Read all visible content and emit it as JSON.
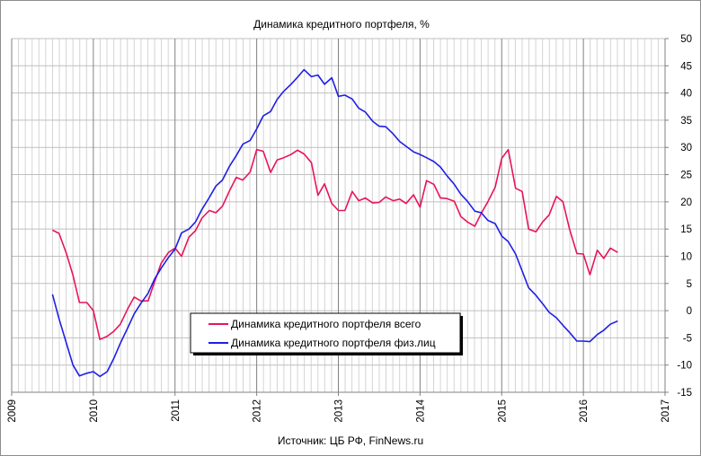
{
  "chart_data": {
    "type": "line",
    "title": "Динамика кредитного портфеля, %",
    "source": "Источник: ЦБ РФ, FinNews.ru",
    "xlim": [
      2009,
      2017
    ],
    "ylim": [
      -15,
      50
    ],
    "x_ticks": [
      "2009",
      "2010",
      "2011",
      "2012",
      "2013",
      "2014",
      "2015",
      "2016",
      "2017"
    ],
    "y_ticks": [
      "50",
      "45",
      "40",
      "35",
      "30",
      "25",
      "20",
      "15",
      "10",
      "5",
      "0",
      "-5",
      "-10",
      "-15"
    ],
    "y_tick_values": [
      50,
      45,
      40,
      35,
      30,
      25,
      20,
      15,
      10,
      5,
      0,
      -5,
      -10,
      -15
    ],
    "grid": true,
    "legend_position": "center-left",
    "series": [
      {
        "name": "Динамика кредитного портфеля всего",
        "color": "#e8145a",
        "points": [
          [
            2009.5,
            14.8
          ],
          [
            2009.58,
            14.2
          ],
          [
            2009.67,
            10.5
          ],
          [
            2009.75,
            6.5
          ],
          [
            2009.83,
            1.5
          ],
          [
            2009.92,
            1.5
          ],
          [
            2010.0,
            0.0
          ],
          [
            2010.08,
            -5.3
          ],
          [
            2010.17,
            -4.7
          ],
          [
            2010.25,
            -3.8
          ],
          [
            2010.33,
            -2.5
          ],
          [
            2010.42,
            0.3
          ],
          [
            2010.5,
            2.5
          ],
          [
            2010.58,
            1.8
          ],
          [
            2010.67,
            1.8
          ],
          [
            2010.75,
            5.3
          ],
          [
            2010.83,
            8.7
          ],
          [
            2010.92,
            10.7
          ],
          [
            2011.0,
            11.5
          ],
          [
            2011.08,
            10.0
          ],
          [
            2011.17,
            13.5
          ],
          [
            2011.25,
            14.7
          ],
          [
            2011.33,
            17.0
          ],
          [
            2011.42,
            18.4
          ],
          [
            2011.5,
            18.0
          ],
          [
            2011.58,
            19.2
          ],
          [
            2011.67,
            22.1
          ],
          [
            2011.75,
            24.5
          ],
          [
            2011.83,
            24.0
          ],
          [
            2011.92,
            25.5
          ],
          [
            2012.0,
            29.6
          ],
          [
            2012.08,
            29.3
          ],
          [
            2012.17,
            25.4
          ],
          [
            2012.25,
            27.7
          ],
          [
            2012.33,
            28.1
          ],
          [
            2012.42,
            28.7
          ],
          [
            2012.5,
            29.5
          ],
          [
            2012.58,
            28.8
          ],
          [
            2012.67,
            27.2
          ],
          [
            2012.75,
            21.2
          ],
          [
            2012.83,
            23.3
          ],
          [
            2012.92,
            19.7
          ],
          [
            2013.0,
            18.4
          ],
          [
            2013.08,
            18.4
          ],
          [
            2013.17,
            21.9
          ],
          [
            2013.25,
            20.2
          ],
          [
            2013.33,
            20.7
          ],
          [
            2013.42,
            19.8
          ],
          [
            2013.5,
            19.9
          ],
          [
            2013.58,
            20.9
          ],
          [
            2013.67,
            20.2
          ],
          [
            2013.75,
            20.5
          ],
          [
            2013.83,
            19.7
          ],
          [
            2013.92,
            21.3
          ],
          [
            2014.0,
            19.0
          ],
          [
            2014.08,
            23.9
          ],
          [
            2014.17,
            23.2
          ],
          [
            2014.25,
            20.7
          ],
          [
            2014.33,
            20.6
          ],
          [
            2014.42,
            20.1
          ],
          [
            2014.5,
            17.3
          ],
          [
            2014.58,
            16.3
          ],
          [
            2014.67,
            15.5
          ],
          [
            2014.75,
            17.9
          ],
          [
            2014.83,
            20.0
          ],
          [
            2014.92,
            22.7
          ],
          [
            2015.0,
            28.0
          ],
          [
            2015.08,
            29.6
          ],
          [
            2015.17,
            22.5
          ],
          [
            2015.25,
            21.9
          ],
          [
            2015.33,
            15.0
          ],
          [
            2015.42,
            14.5
          ],
          [
            2015.5,
            16.3
          ],
          [
            2015.58,
            17.6
          ],
          [
            2015.67,
            21.0
          ],
          [
            2015.75,
            20.0
          ],
          [
            2015.83,
            15.0
          ],
          [
            2015.92,
            10.5
          ],
          [
            2016.0,
            10.4
          ],
          [
            2016.08,
            6.6
          ],
          [
            2016.17,
            11.1
          ],
          [
            2016.25,
            9.6
          ],
          [
            2016.33,
            11.5
          ],
          [
            2016.42,
            10.7
          ]
        ]
      },
      {
        "name": "Динамика кредитного портфеля физ.лиц",
        "color": "#1e1ee6",
        "points": [
          [
            2009.5,
            3.0
          ],
          [
            2009.58,
            -1.5
          ],
          [
            2009.67,
            -6.0
          ],
          [
            2009.75,
            -10.0
          ],
          [
            2009.83,
            -12.0
          ],
          [
            2009.92,
            -11.5
          ],
          [
            2010.0,
            -11.2
          ],
          [
            2010.08,
            -12.1
          ],
          [
            2010.17,
            -11.2
          ],
          [
            2010.25,
            -8.8
          ],
          [
            2010.33,
            -6.0
          ],
          [
            2010.42,
            -3.2
          ],
          [
            2010.5,
            -0.6
          ],
          [
            2010.58,
            1.3
          ],
          [
            2010.67,
            3.2
          ],
          [
            2010.75,
            5.8
          ],
          [
            2010.83,
            7.8
          ],
          [
            2010.92,
            9.8
          ],
          [
            2011.0,
            11.3
          ],
          [
            2011.08,
            14.3
          ],
          [
            2011.17,
            15.0
          ],
          [
            2011.25,
            16.3
          ],
          [
            2011.33,
            18.6
          ],
          [
            2011.42,
            20.8
          ],
          [
            2011.5,
            22.9
          ],
          [
            2011.58,
            24.0
          ],
          [
            2011.67,
            26.6
          ],
          [
            2011.75,
            28.5
          ],
          [
            2011.83,
            30.6
          ],
          [
            2011.92,
            31.3
          ],
          [
            2012.0,
            33.4
          ],
          [
            2012.08,
            35.8
          ],
          [
            2012.17,
            36.6
          ],
          [
            2012.25,
            38.8
          ],
          [
            2012.33,
            40.3
          ],
          [
            2012.42,
            41.6
          ],
          [
            2012.5,
            42.9
          ],
          [
            2012.58,
            44.3
          ],
          [
            2012.67,
            43.0
          ],
          [
            2012.75,
            43.3
          ],
          [
            2012.83,
            41.6
          ],
          [
            2012.92,
            42.8
          ],
          [
            2013.0,
            39.4
          ],
          [
            2013.08,
            39.6
          ],
          [
            2013.17,
            38.9
          ],
          [
            2013.25,
            37.2
          ],
          [
            2013.33,
            36.5
          ],
          [
            2013.42,
            34.8
          ],
          [
            2013.5,
            33.9
          ],
          [
            2013.58,
            33.8
          ],
          [
            2013.67,
            32.5
          ],
          [
            2013.75,
            31.1
          ],
          [
            2013.83,
            30.2
          ],
          [
            2013.92,
            29.2
          ],
          [
            2014.0,
            28.7
          ],
          [
            2014.08,
            28.1
          ],
          [
            2014.17,
            27.4
          ],
          [
            2014.25,
            26.4
          ],
          [
            2014.33,
            24.8
          ],
          [
            2014.42,
            23.2
          ],
          [
            2014.5,
            21.4
          ],
          [
            2014.58,
            20.1
          ],
          [
            2014.67,
            18.3
          ],
          [
            2014.75,
            18.0
          ],
          [
            2014.83,
            16.6
          ],
          [
            2014.92,
            16.0
          ],
          [
            2015.0,
            13.7
          ],
          [
            2015.08,
            12.7
          ],
          [
            2015.17,
            10.4
          ],
          [
            2015.25,
            7.3
          ],
          [
            2015.33,
            4.2
          ],
          [
            2015.42,
            2.8
          ],
          [
            2015.5,
            1.3
          ],
          [
            2015.58,
            -0.3
          ],
          [
            2015.67,
            -1.3
          ],
          [
            2015.75,
            -2.7
          ],
          [
            2015.83,
            -4.0
          ],
          [
            2015.92,
            -5.6
          ],
          [
            2016.0,
            -5.6
          ],
          [
            2016.08,
            -5.7
          ],
          [
            2016.17,
            -4.4
          ],
          [
            2016.25,
            -3.6
          ],
          [
            2016.33,
            -2.5
          ],
          [
            2016.42,
            -1.9
          ]
        ]
      }
    ]
  }
}
